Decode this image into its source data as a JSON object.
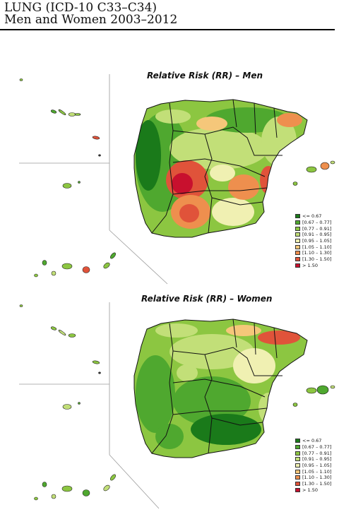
{
  "header": {
    "title": "LUNG (ICD-10 C33–C34)",
    "subtitle": "Men and Women 2003–2012"
  },
  "legend": {
    "classes": [
      "<= 0.67",
      "[0.67 – 0.77]",
      "[0.77 – 0.91]",
      "[0.91 – 0.95]",
      "[0.95 – 1.05]",
      "[1.05 – 1.10]",
      "[1.10 – 1.30]",
      "[1.30 – 1.50]",
      "> 1.50"
    ],
    "colors": [
      "#1a7a1a",
      "#4fa82f",
      "#8cc641",
      "#c2df78",
      "#f0f0b2",
      "#f5c77a",
      "#ee8f4e",
      "#e0533a",
      "#c8102e"
    ]
  },
  "maps": [
    {
      "title": "Relative Risk (RR) – Men",
      "dominant_palette": [
        "#4fa82f",
        "#8cc641",
        "#e0533a",
        "#ee8f4e",
        "#c2df78"
      ]
    },
    {
      "title": "Relative Risk (RR) – Women",
      "dominant_palette": [
        "#8cc641",
        "#4fa82f",
        "#c2df78",
        "#f0f0b2"
      ]
    }
  ]
}
